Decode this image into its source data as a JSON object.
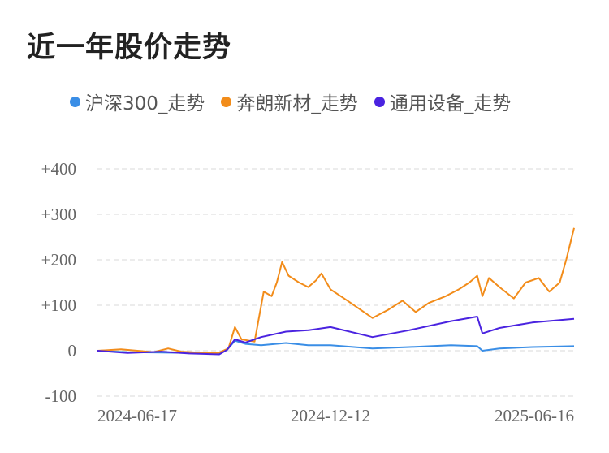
{
  "title": "近一年股价走势",
  "chart_data": {
    "type": "line",
    "title": "近一年股价走势",
    "xlabel": "",
    "ylabel": "",
    "y_ticks": [
      {
        "value": 400,
        "label": "+400"
      },
      {
        "value": 300,
        "label": "+300"
      },
      {
        "value": 200,
        "label": "+200"
      },
      {
        "value": 100,
        "label": "+100"
      },
      {
        "value": 0,
        "label": "0"
      },
      {
        "value": -100,
        "label": "-100"
      }
    ],
    "ylim": [
      -100,
      400
    ],
    "x_ticks": [
      "2024-06-17",
      "2024-12-12",
      "2025-06-16"
    ],
    "xlim": [
      "2024-06-17",
      "2025-06-16"
    ],
    "grid": "horizontal dashed",
    "legend_position": "top-left",
    "series": [
      {
        "name": "沪深300_走势",
        "color": "#3a8ee6",
        "points": [
          [
            "2024-06-17",
            0
          ],
          [
            "2024-07-10",
            -3
          ],
          [
            "2024-08-05",
            -4
          ],
          [
            "2024-08-26",
            -5
          ],
          [
            "2024-09-18",
            -6
          ],
          [
            "2024-09-24",
            2
          ],
          [
            "2024-09-30",
            22
          ],
          [
            "2024-10-08",
            15
          ],
          [
            "2024-10-20",
            12
          ],
          [
            "2024-11-08",
            17
          ],
          [
            "2024-11-25",
            12
          ],
          [
            "2024-12-12",
            12
          ],
          [
            "2025-01-13",
            5
          ],
          [
            "2025-02-10",
            8
          ],
          [
            "2025-03-14",
            12
          ],
          [
            "2025-04-03",
            10
          ],
          [
            "2025-04-07",
            0
          ],
          [
            "2025-04-20",
            5
          ],
          [
            "2025-05-15",
            8
          ],
          [
            "2025-06-16",
            10
          ]
        ]
      },
      {
        "name": "奔朗新材_走势",
        "color": "#f28c1a",
        "points": [
          [
            "2024-06-17",
            0
          ],
          [
            "2024-07-05",
            3
          ],
          [
            "2024-07-30",
            -3
          ],
          [
            "2024-08-10",
            5
          ],
          [
            "2024-08-20",
            -2
          ],
          [
            "2024-09-10",
            -5
          ],
          [
            "2024-09-18",
            -4
          ],
          [
            "2024-09-25",
            5
          ],
          [
            "2024-09-30",
            52
          ],
          [
            "2024-10-05",
            25
          ],
          [
            "2024-10-15",
            20
          ],
          [
            "2024-10-22",
            130
          ],
          [
            "2024-10-28",
            120
          ],
          [
            "2024-11-01",
            150
          ],
          [
            "2024-11-05",
            195
          ],
          [
            "2024-11-10",
            165
          ],
          [
            "2024-11-18",
            150
          ],
          [
            "2024-11-25",
            140
          ],
          [
            "2024-12-01",
            155
          ],
          [
            "2024-12-05",
            170
          ],
          [
            "2024-12-12",
            135
          ],
          [
            "2024-12-25",
            110
          ],
          [
            "2025-01-13",
            72
          ],
          [
            "2025-01-25",
            90
          ],
          [
            "2025-02-05",
            110
          ],
          [
            "2025-02-15",
            85
          ],
          [
            "2025-02-25",
            105
          ],
          [
            "2025-03-10",
            120
          ],
          [
            "2025-03-20",
            135
          ],
          [
            "2025-03-28",
            150
          ],
          [
            "2025-04-03",
            165
          ],
          [
            "2025-04-07",
            120
          ],
          [
            "2025-04-12",
            160
          ],
          [
            "2025-04-20",
            140
          ],
          [
            "2025-05-01",
            115
          ],
          [
            "2025-05-10",
            150
          ],
          [
            "2025-05-20",
            160
          ],
          [
            "2025-05-28",
            130
          ],
          [
            "2025-06-05",
            150
          ],
          [
            "2025-06-10",
            200
          ],
          [
            "2025-06-16",
            270
          ]
        ]
      },
      {
        "name": "通用设备_走势",
        "color": "#4a23e0",
        "points": [
          [
            "2024-06-17",
            0
          ],
          [
            "2024-07-10",
            -5
          ],
          [
            "2024-08-05",
            -2
          ],
          [
            "2024-08-26",
            -6
          ],
          [
            "2024-09-18",
            -8
          ],
          [
            "2024-09-24",
            2
          ],
          [
            "2024-09-30",
            25
          ],
          [
            "2024-10-08",
            18
          ],
          [
            "2024-10-20",
            30
          ],
          [
            "2024-11-08",
            42
          ],
          [
            "2024-11-25",
            45
          ],
          [
            "2024-12-12",
            52
          ],
          [
            "2025-01-13",
            30
          ],
          [
            "2025-02-10",
            45
          ],
          [
            "2025-03-14",
            65
          ],
          [
            "2025-04-03",
            75
          ],
          [
            "2025-04-07",
            38
          ],
          [
            "2025-04-20",
            50
          ],
          [
            "2025-05-15",
            62
          ],
          [
            "2025-06-16",
            70
          ]
        ]
      }
    ]
  }
}
